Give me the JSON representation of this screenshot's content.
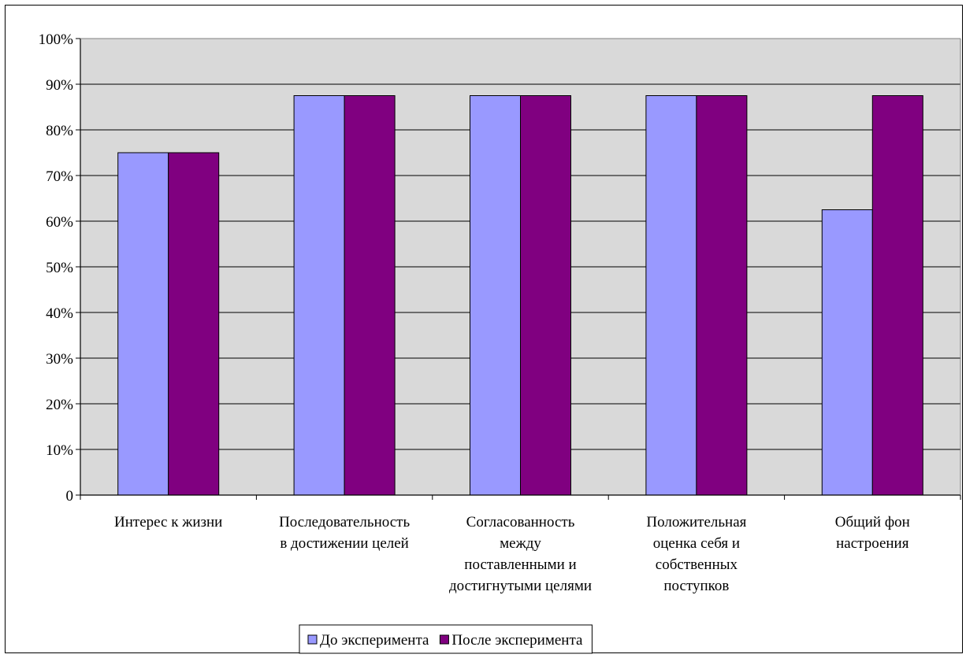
{
  "chart_data": {
    "type": "bar",
    "categories": [
      [
        "Интерес к жизни"
      ],
      [
        "Последовательность",
        "в  достижении  целей"
      ],
      [
        "Согласованность",
        "между",
        "поставленными и",
        "достигнутыми целями"
      ],
      [
        "Положительная",
        "оценка себя и",
        "собственных",
        "поступков"
      ],
      [
        "Общий фон",
        "настроения"
      ]
    ],
    "series": [
      {
        "name": "До эксперимента",
        "color": "#9999FF",
        "values": [
          75,
          87.5,
          87.5,
          87.5,
          62.5
        ]
      },
      {
        "name": "После эксперимента",
        "color": "#800080",
        "values": [
          75,
          87.5,
          87.5,
          87.5,
          87.5
        ]
      }
    ],
    "y_ticks": [
      "0",
      "10%",
      "20%",
      "30%",
      "40%",
      "50%",
      "60%",
      "70%",
      "80%",
      "90%",
      "100%"
    ],
    "ylim": [
      0,
      100
    ],
    "grid": true,
    "plot_background": "#D9D9D9",
    "legend_position": "bottom"
  }
}
